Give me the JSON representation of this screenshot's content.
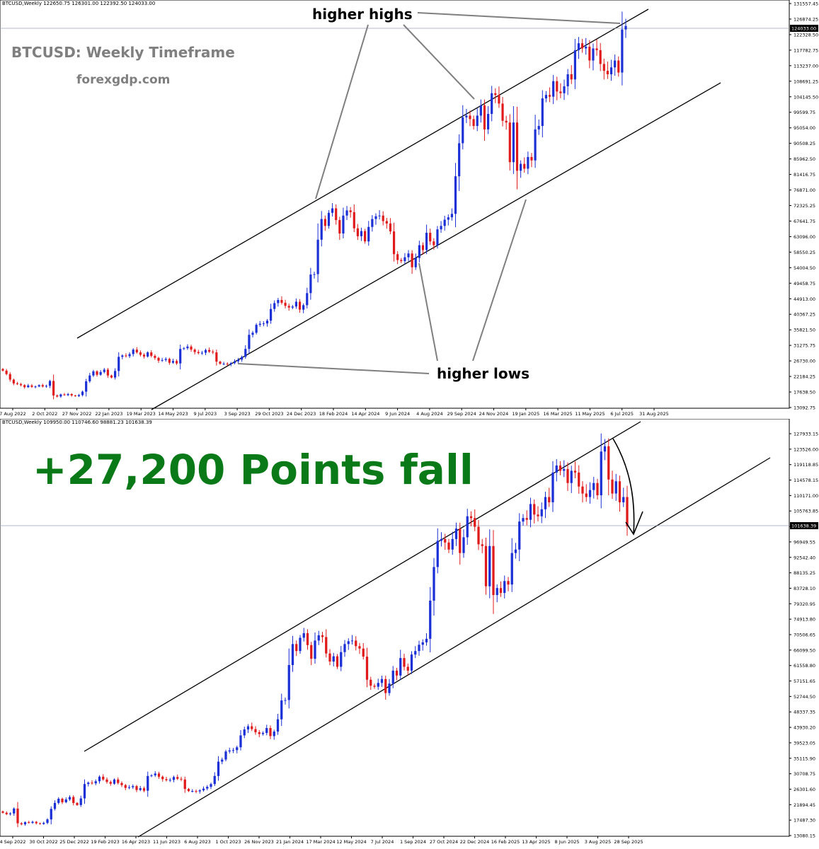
{
  "top": {
    "header": "BTCUSD,Weekly  122650.75 126301.00 122392.50 124033.00",
    "title": "BTCUSD: Weekly Timeframe",
    "site": "forexgdp.com",
    "label_highs": "higher highs",
    "label_lows": "higher lows"
  },
  "bottom": {
    "header": "BTCUSD,Weekly  109950.00 110746.60 98881.23 101638.39",
    "headline": "+27,200 Points fall"
  },
  "colors": {
    "bull": "#1a2fd6",
    "bear": "#e01a1a",
    "headline": "#0a7a18",
    "annot": "#7f7f7f",
    "price_box": "#000000"
  },
  "chart_data": [
    {
      "type": "candlestick",
      "timeframe": "Weekly",
      "symbol": "BTCUSD",
      "ylim": [
        13092.75,
        131557.45
      ],
      "y_ticks": [
        "131557.45",
        "126874.25",
        "122328.50",
        "117782.75",
        "113237.00",
        "108691.25",
        "104145.50",
        "99599.75",
        "95054.00",
        "90508.25",
        "85962.50",
        "81416.75",
        "76871.00",
        "72325.25",
        "67641.75",
        "63096.00",
        "58550.25",
        "54004.50",
        "49458.75",
        "44913.00",
        "40367.25",
        "35821.50",
        "31275.75",
        "26730.00",
        "22184.25",
        "17638.50",
        "13092.75"
      ],
      "x_ticks": [
        "7 Aug 2022",
        "2 Oct 2022",
        "27 Nov 2022",
        "22 Jan 2023",
        "19 Mar 2023",
        "14 May 2023",
        "9 Jul 2023",
        "3 Sep 2023",
        "29 Oct 2023",
        "24 Dec 2023",
        "18 Feb 2024",
        "14 Apr 2024",
        "9 Jun 2024",
        "4 Aug 2024",
        "29 Sep 2024",
        "24 Nov 2024",
        "19 Jan 2025",
        "16 Mar 2025",
        "11 May 2025",
        "6 Jul 2025",
        "31 Aug 2025"
      ],
      "current_price": "124033.00",
      "closes": [
        24000,
        23000,
        21400,
        20300,
        20100,
        19800,
        19200,
        19700,
        19300,
        19400,
        19800,
        19400,
        19600,
        21000,
        16800,
        16500,
        17100,
        16900,
        17200,
        16800,
        16600,
        16900,
        17900,
        20900,
        22600,
        23800,
        22800,
        23600,
        24300,
        22600,
        22000,
        23900,
        28000,
        28400,
        28200,
        28800,
        30100,
        29300,
        28600,
        28100,
        29300,
        28300,
        27700,
        26900,
        27100,
        27400,
        26300,
        26800,
        26100,
        30300,
        30500,
        31000,
        30100,
        29400,
        29100,
        29200,
        30000,
        29500,
        29300,
        26600,
        26000,
        26000,
        25900,
        26200,
        26700,
        27200,
        28000,
        30300,
        34400,
        35000,
        37300,
        37600,
        37700,
        38500,
        41900,
        43600,
        44500,
        43700,
        42800,
        42300,
        42600,
        44000,
        41700,
        43000,
        46500,
        51900,
        52000,
        62000,
        68000,
        66000,
        69800,
        71100,
        67700,
        63800,
        69000,
        70500,
        70000,
        65300,
        63000,
        64500,
        61500,
        65700,
        68000,
        68800,
        69000,
        67400,
        66700,
        64400,
        57800,
        56100,
        55800,
        56900,
        58000,
        54000,
        56700,
        60400,
        59000,
        64000,
        61500,
        60400,
        65000,
        66000,
        67800,
        68500,
        69500,
        80400,
        90000,
        97500,
        98000,
        97000,
        95000,
        98000,
        101000,
        94000,
        98500,
        104500,
        104000,
        101500,
        96500,
        96000,
        84500,
        96000,
        82000,
        84000,
        82600,
        86000,
        85000,
        94000,
        95000,
        103000,
        104000,
        103500,
        108000,
        105000,
        104500,
        106500,
        110000,
        108500,
        117000,
        119000,
        117500,
        118000,
        114000,
        117500,
        117000,
        113000,
        111000,
        110000,
        112000,
        114000,
        110500,
        123000,
        124033
      ]
    },
    {
      "type": "candlestick",
      "timeframe": "Weekly",
      "symbol": "BTCUSD",
      "ylim": [
        13080.75,
        132340.15
      ],
      "y_ticks": [
        "127933.15",
        "123526.00",
        "119118.85",
        "114578.15",
        "110171.00",
        "105763.85",
        "101356.70",
        "96949.55",
        "92542.40",
        "88135.25",
        "83728.10",
        "79320.95",
        "74913.80",
        "70506.65",
        "66099.50",
        "61558.80",
        "57151.65",
        "52744.50",
        "48337.35",
        "43930.20",
        "39523.05",
        "35115.90",
        "30708.75",
        "26301.60",
        "21894.45",
        "17487.30",
        "13080.15"
      ],
      "x_ticks": [
        "4 Sep 2022",
        "30 Oct 2022",
        "25 Dec 2022",
        "19 Feb 2023",
        "16 Apr 2023",
        "11 Jun 2023",
        "6 Aug 2023",
        "1 Oct 2023",
        "26 Nov 2023",
        "21 Jan 2024",
        "17 Mar 2024",
        "12 May 2024",
        "7 Jul 2024",
        "1 Sep 2024",
        "27 Oct 2024",
        "22 Dec 2024",
        "16 Feb 2025",
        "13 Apr 2025",
        "8 Jun 2025",
        "3 Aug 2025",
        "28 Sep 2025"
      ],
      "current_price": "101638.39",
      "closes": [
        19800,
        19400,
        19600,
        21000,
        16800,
        16500,
        17100,
        16900,
        17200,
        16800,
        16600,
        16900,
        17900,
        20900,
        22600,
        23800,
        22800,
        23600,
        24300,
        22600,
        22000,
        23900,
        28000,
        28400,
        28200,
        28800,
        30100,
        29300,
        28600,
        28100,
        29300,
        28300,
        27700,
        26900,
        27100,
        27400,
        26300,
        26800,
        26100,
        30300,
        30500,
        31000,
        30100,
        29400,
        29100,
        29200,
        30000,
        29500,
        29300,
        26600,
        26000,
        26000,
        25900,
        26200,
        26700,
        27200,
        28000,
        30300,
        34400,
        35000,
        37300,
        37600,
        37700,
        38500,
        41900,
        43600,
        44500,
        43700,
        42800,
        42300,
        42600,
        44000,
        41700,
        43000,
        46500,
        51900,
        52000,
        62000,
        68000,
        66000,
        69800,
        71100,
        67700,
        63800,
        69000,
        70500,
        70000,
        65300,
        63000,
        64500,
        61500,
        65700,
        68000,
        68800,
        69000,
        67400,
        66700,
        64400,
        57800,
        56100,
        55800,
        56900,
        58000,
        54000,
        56700,
        60400,
        59000,
        64000,
        61500,
        60400,
        65000,
        66000,
        67800,
        68500,
        69500,
        80400,
        90000,
        97500,
        98000,
        97000,
        95000,
        98000,
        101000,
        94000,
        98500,
        104500,
        104000,
        101500,
        96500,
        96000,
        84500,
        96000,
        82000,
        84000,
        82600,
        86000,
        85000,
        94000,
        95000,
        103000,
        104000,
        103500,
        108000,
        105000,
        104500,
        106500,
        110000,
        108500,
        117000,
        119000,
        117500,
        118000,
        114000,
        117500,
        117000,
        113000,
        111000,
        110000,
        112000,
        114000,
        110500,
        123000,
        124500,
        115000,
        111000,
        114500,
        108500,
        110000,
        101638
      ]
    }
  ]
}
